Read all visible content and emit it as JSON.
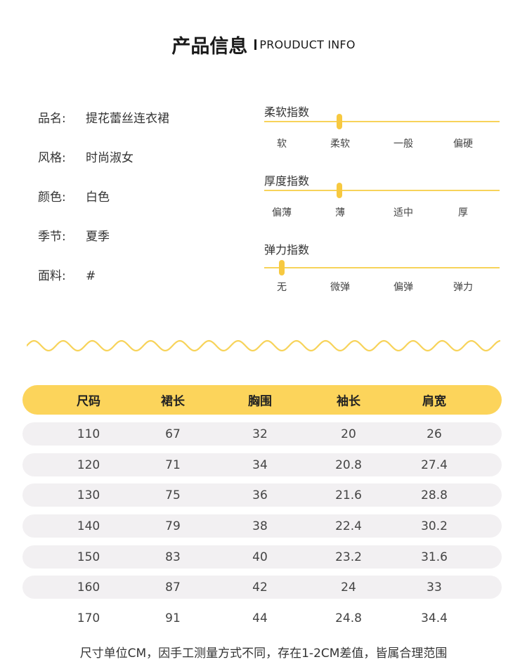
{
  "header": {
    "title_cn": "产品信息",
    "title_en": "PROUDUCT INFO"
  },
  "info": [
    {
      "label": "品名:",
      "value": "提花蕾丝连衣裙"
    },
    {
      "label": "风格:",
      "value": "时尚淑女"
    },
    {
      "label": "颜色:",
      "value": "白色"
    },
    {
      "label": "季节:",
      "value": "夏季"
    },
    {
      "label": "面料:",
      "value": "#"
    }
  ],
  "indices": [
    {
      "title": "柔软指数",
      "ticks": [
        "软",
        "柔软",
        "一般",
        "偏硬"
      ],
      "level": 0.32
    },
    {
      "title": "厚度指数",
      "ticks": [
        "偏薄",
        "薄",
        "适中",
        "厚"
      ],
      "level": 0.32
    },
    {
      "title": "弹力指数",
      "ticks": [
        "无",
        "微弹",
        "偏弹",
        "弹力"
      ],
      "level": 0.075
    }
  ],
  "size_table": {
    "headers": [
      "尺码",
      "裙长",
      "胸围",
      "袖长",
      "肩宽"
    ],
    "rows": [
      [
        "110",
        "67",
        "32",
        "20",
        "26"
      ],
      [
        "120",
        "71",
        "34",
        "20.8",
        "27.4"
      ],
      [
        "130",
        "75",
        "36",
        "21.6",
        "28.8"
      ],
      [
        "140",
        "79",
        "38",
        "22.4",
        "30.2"
      ],
      [
        "150",
        "83",
        "40",
        "23.2",
        "31.6"
      ],
      [
        "160",
        "87",
        "42",
        "24",
        "33"
      ],
      [
        "170",
        "91",
        "44",
        "24.8",
        "34.4"
      ]
    ]
  },
  "note": "尺寸单位CM，因手工测量方式不同，存在1-2CM差值，皆属合理范围",
  "colors": {
    "accent": "#fcd45b",
    "slider_line": "#f7d35a",
    "row_shade": "#f2f0f2"
  }
}
